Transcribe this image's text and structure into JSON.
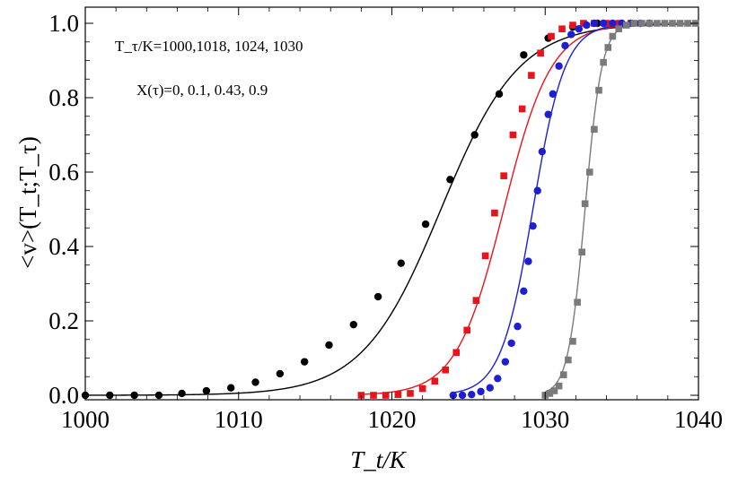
{
  "chart_data": {
    "type": "scatter",
    "title": "",
    "xlabel": "T_t/K",
    "ylabel": "<v>(T_t;T_τ)",
    "xlim": [
      1000,
      1040
    ],
    "ylim": [
      -0.02,
      1.1
    ],
    "x_ticks": [
      1000,
      1010,
      1020,
      1030,
      1040
    ],
    "x_tick_labels": [
      "1000",
      "1010",
      "1020",
      "1030",
      "1040"
    ],
    "y_ticks": [
      0.0,
      0.2,
      0.4,
      0.6,
      0.8,
      1.0
    ],
    "y_tick_labels": [
      "0.0",
      "0.2",
      "0.4",
      "0.6",
      "0.8",
      "1.0"
    ],
    "grid": false,
    "annotations": [
      "T_τ/K=1000,1018, 1024, 1030",
      "X(τ)=0, 0.1, 0.43,  0.9"
    ],
    "series": [
      {
        "marker": "circle",
        "color": "#000000",
        "fit_curve": {
          "midpoint": 1023.2,
          "width": 2.55
        },
        "points": [
          [
            1000,
            0.0
          ],
          [
            1001.6,
            0.0
          ],
          [
            1003.2,
            0.0
          ],
          [
            1004.8,
            0.0
          ],
          [
            1006.3,
            0.005
          ],
          [
            1007.9,
            0.012
          ],
          [
            1009.5,
            0.02
          ],
          [
            1011.1,
            0.035
          ],
          [
            1012.7,
            0.058
          ],
          [
            1014.3,
            0.09
          ],
          [
            1015.9,
            0.135
          ],
          [
            1017.5,
            0.19
          ],
          [
            1019.1,
            0.265
          ],
          [
            1020.6,
            0.355
          ],
          [
            1022.2,
            0.46
          ],
          [
            1023.8,
            0.58
          ],
          [
            1025.4,
            0.7
          ],
          [
            1027.0,
            0.81
          ],
          [
            1028.6,
            0.915
          ],
          [
            1030.2,
            0.96
          ],
          [
            1031.8,
            0.99
          ],
          [
            1033.4,
            1.0
          ]
        ]
      },
      {
        "marker": "square",
        "color": "#e8141c",
        "fit_curve": {
          "midpoint": 1027.3,
          "width": 1.55
        },
        "points": [
          [
            1018.0,
            0.0
          ],
          [
            1018.8,
            0.0
          ],
          [
            1019.6,
            0.0
          ],
          [
            1020.4,
            0.002
          ],
          [
            1021.2,
            0.005
          ],
          [
            1022.0,
            0.018
          ],
          [
            1022.8,
            0.038
          ],
          [
            1023.5,
            0.068
          ],
          [
            1024.2,
            0.115
          ],
          [
            1024.9,
            0.175
          ],
          [
            1025.5,
            0.255
          ],
          [
            1026.1,
            0.375
          ],
          [
            1026.7,
            0.49
          ],
          [
            1027.3,
            0.59
          ],
          [
            1027.9,
            0.7
          ],
          [
            1028.5,
            0.77
          ],
          [
            1029.1,
            0.86
          ],
          [
            1029.7,
            0.92
          ],
          [
            1030.4,
            0.965
          ],
          [
            1031.1,
            0.985
          ],
          [
            1031.8,
            0.995
          ],
          [
            1032.5,
            1.0
          ],
          [
            1033.2,
            1.0
          ],
          [
            1034.0,
            1.0
          ],
          [
            1034.8,
            1.0
          ],
          [
            1035.6,
            1.0
          ]
        ]
      },
      {
        "marker": "circle",
        "color": "#1e1ed2",
        "fit_curve": {
          "midpoint": 1029.2,
          "width": 1.05
        },
        "points": [
          [
            1024.0,
            0.0
          ],
          [
            1024.6,
            0.0
          ],
          [
            1025.2,
            0.002
          ],
          [
            1025.8,
            0.01
          ],
          [
            1026.4,
            0.02
          ],
          [
            1026.9,
            0.045
          ],
          [
            1027.4,
            0.09
          ],
          [
            1027.8,
            0.14
          ],
          [
            1028.2,
            0.185
          ],
          [
            1028.6,
            0.28
          ],
          [
            1028.9,
            0.36
          ],
          [
            1029.2,
            0.455
          ],
          [
            1029.5,
            0.55
          ],
          [
            1029.8,
            0.655
          ],
          [
            1030.2,
            0.755
          ],
          [
            1030.5,
            0.81
          ],
          [
            1030.9,
            0.885
          ],
          [
            1031.3,
            0.94
          ],
          [
            1031.7,
            0.97
          ],
          [
            1032.2,
            0.985
          ],
          [
            1032.7,
            0.995
          ],
          [
            1033.2,
            1.0
          ],
          [
            1033.8,
            1.0
          ],
          [
            1034.4,
            1.0
          ],
          [
            1035.0,
            1.0
          ],
          [
            1035.6,
            1.0
          ],
          [
            1036.2,
            1.0
          ],
          [
            1036.8,
            1.0
          ]
        ]
      },
      {
        "marker": "square",
        "color": "#7a7a7a",
        "fit_curve": {
          "midpoint": 1032.6,
          "width": 0.55
        },
        "points": [
          [
            1030.0,
            0.0
          ],
          [
            1030.3,
            0.005
          ],
          [
            1030.6,
            0.012
          ],
          [
            1030.9,
            0.025
          ],
          [
            1031.2,
            0.055
          ],
          [
            1031.5,
            0.095
          ],
          [
            1031.8,
            0.145
          ],
          [
            1032.1,
            0.25
          ],
          [
            1032.4,
            0.385
          ],
          [
            1032.6,
            0.515
          ],
          [
            1032.9,
            0.6
          ],
          [
            1033.2,
            0.715
          ],
          [
            1033.5,
            0.82
          ],
          [
            1033.8,
            0.895
          ],
          [
            1034.1,
            0.935
          ],
          [
            1034.4,
            0.965
          ],
          [
            1034.8,
            0.985
          ],
          [
            1035.3,
            0.995
          ],
          [
            1035.8,
            1.0
          ],
          [
            1036.3,
            1.0
          ],
          [
            1036.8,
            1.0
          ],
          [
            1037.3,
            1.0
          ],
          [
            1037.8,
            1.0
          ],
          [
            1038.3,
            1.0
          ],
          [
            1038.8,
            1.0
          ],
          [
            1039.3,
            1.0
          ],
          [
            1039.8,
            1.0
          ]
        ]
      }
    ]
  }
}
